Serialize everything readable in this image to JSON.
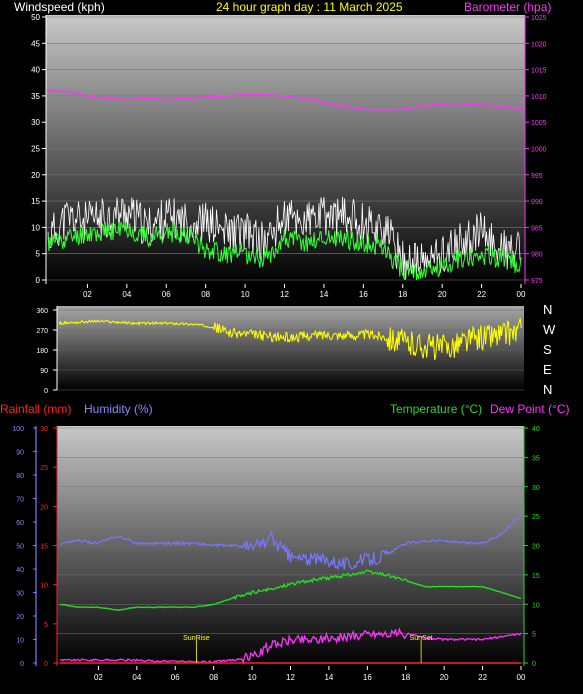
{
  "header": {
    "windspeed_label": "Windspeed (kph)",
    "title": "24 hour graph day : 11 March 2025",
    "barometer_label": "Barometer (hpa)"
  },
  "lower_header": {
    "rainfall_label": "Rainfall (mm)",
    "humidity_label": "Humidity (%)",
    "temperature_label": "Temperature (°C)",
    "dewpoint_label": "Dew Point (°C)"
  },
  "direction_letters": [
    "N",
    "W",
    "S",
    "E",
    "N"
  ],
  "x_ticks": [
    "02",
    "04",
    "06",
    "08",
    "10",
    "12",
    "14",
    "16",
    "18",
    "20",
    "22",
    "00"
  ],
  "colors": {
    "wind": "#ffffff",
    "wind_avg": "#33ff33",
    "barometer": "#ff33ff",
    "direction": "#ffff00",
    "rain": "#ff2222",
    "humidity": "#7777ff",
    "temperature": "#22dd22",
    "dewpoint": "#ff33ff",
    "title": "#ffff00"
  },
  "annotations": {
    "sunrise": "SunRise",
    "sunset": "SunSet"
  },
  "chart_data": [
    {
      "type": "line",
      "name": "wind",
      "x_hours": [
        0,
        1,
        2,
        3,
        4,
        5,
        6,
        7,
        8,
        9,
        10,
        11,
        12,
        13,
        14,
        15,
        16,
        17,
        18,
        19,
        20,
        21,
        22,
        23,
        24
      ],
      "series": [
        {
          "name": "Windspeed (kph)",
          "values": [
            8,
            12,
            11,
            12,
            13,
            10,
            12,
            11,
            11,
            9,
            9,
            7,
            12,
            11,
            12,
            12,
            11,
            10,
            4,
            3,
            5,
            7,
            9,
            6,
            5
          ]
        },
        {
          "name": "",
          "values": [
            7,
            8,
            9,
            9,
            10,
            8,
            9,
            9,
            6,
            5,
            5,
            4,
            8,
            7,
            8,
            8,
            7,
            6,
            2,
            1,
            3,
            4,
            5,
            4,
            3
          ]
        }
      ],
      "ylim": [
        0,
        50
      ],
      "yticks": [
        0,
        5,
        10,
        15,
        20,
        25,
        30,
        35,
        40,
        45,
        50
      ],
      "barometer": {
        "name": "Barometer (hpa)",
        "values": [
          1011.0,
          1010.8,
          1010.0,
          1009.5,
          1009.3,
          1009.5,
          1009.3,
          1009.5,
          1009.8,
          1010.0,
          1010.2,
          1010.2,
          1010.0,
          1009.5,
          1008.8,
          1008.0,
          1007.5,
          1007.3,
          1007.5,
          1008.0,
          1008.5,
          1008.5,
          1008.3,
          1008.0,
          1007.6
        ]
      },
      "y2lim": [
        975,
        1025
      ],
      "y2ticks": [
        975,
        980,
        985,
        990,
        995,
        1000,
        1005,
        1010,
        1015,
        1020,
        1025
      ]
    },
    {
      "type": "scatter",
      "name": "wind direction",
      "x_hours": [
        0,
        1,
        2,
        3,
        4,
        5,
        6,
        7,
        8,
        9,
        10,
        11,
        12,
        13,
        14,
        15,
        16,
        17,
        18,
        19,
        20,
        21,
        22,
        23,
        24
      ],
      "values": [
        300,
        305,
        310,
        305,
        300,
        300,
        300,
        295,
        285,
        255,
        250,
        240,
        235,
        245,
        250,
        245,
        250,
        240,
        210,
        200,
        190,
        220,
        240,
        250,
        270
      ],
      "ylim": [
        0,
        360
      ],
      "yticks": [
        0,
        90,
        180,
        270,
        360
      ]
    },
    {
      "type": "line",
      "name": "temperature",
      "x_hours": [
        0,
        1,
        2,
        3,
        4,
        5,
        6,
        7,
        8,
        9,
        10,
        11,
        12,
        13,
        14,
        15,
        16,
        17,
        18,
        19,
        20,
        21,
        22,
        23,
        24
      ],
      "series": [
        {
          "name": "Humidity (%)",
          "values": [
            51,
            52,
            51,
            54,
            51,
            51,
            51,
            51,
            50,
            50,
            49,
            53,
            45,
            44,
            44,
            42,
            44,
            46,
            51,
            52,
            52,
            51,
            51,
            55,
            63
          ]
        },
        {
          "name": "Temperature (°C)",
          "values": [
            10,
            9.5,
            9.5,
            9,
            9.5,
            9.5,
            9.5,
            9.5,
            10,
            11,
            12,
            12.5,
            13.5,
            14,
            14.5,
            15,
            15.5,
            15,
            14,
            13,
            13,
            13,
            13,
            12,
            11
          ]
        },
        {
          "name": "Dew Point (°C)",
          "values": [
            0.5,
            0.5,
            0.5,
            0.5,
            0.5,
            0.3,
            0.3,
            0.2,
            0.2,
            0.5,
            1,
            3,
            4,
            4,
            4.2,
            4.5,
            5,
            5,
            5,
            4.3,
            4,
            4,
            4,
            4.5,
            5
          ]
        },
        {
          "name": "Rainfall (mm)",
          "values": [
            0,
            0,
            0,
            0,
            0,
            0,
            0,
            0,
            0,
            0,
            0,
            0,
            0,
            0,
            0,
            0,
            0,
            0,
            0,
            0,
            0,
            0,
            0,
            0,
            0
          ]
        }
      ],
      "ylim_humidity": [
        0,
        100
      ],
      "yticks_humidity": [
        0,
        10,
        20,
        30,
        40,
        50,
        60,
        70,
        80,
        90,
        100
      ],
      "ylim_rain": [
        0,
        30
      ],
      "yticks_rain": [
        0,
        5,
        10,
        15,
        20,
        25,
        30
      ],
      "ylim_temp": [
        0,
        40
      ],
      "yticks_temp": [
        0,
        5,
        10,
        15,
        20,
        25,
        30,
        35,
        40
      ],
      "sunrise_hour": 7.1,
      "sunset_hour": 18.8
    }
  ]
}
